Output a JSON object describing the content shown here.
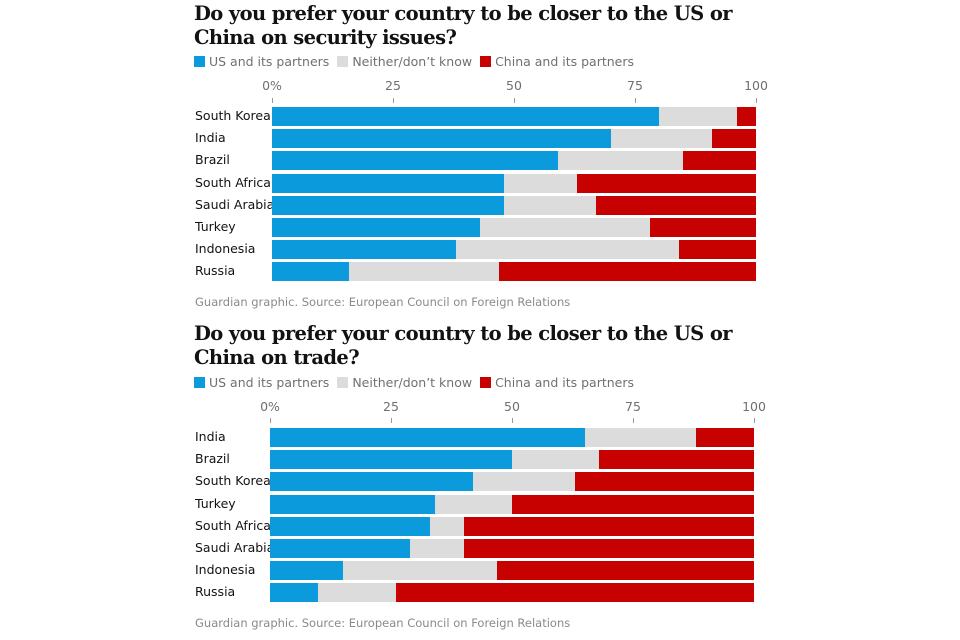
{
  "colors": {
    "us": "#0b9adc",
    "neither": "#dcdcdc",
    "china": "#c70000"
  },
  "chart_data": [
    {
      "type": "bar",
      "orientation": "horizontal",
      "stacked": true,
      "title": "Do you prefer your country to be closer to the US or China on security issues?",
      "xlabel": "",
      "ylabel": "",
      "xlim": [
        0,
        100
      ],
      "x_ticks": [
        "0%",
        "25",
        "50",
        "75",
        "100"
      ],
      "x_tick_values": [
        0,
        25,
        50,
        75,
        100
      ],
      "legend": [
        "US and its partners",
        "Neither/don’t know",
        "China and its partners"
      ],
      "legend_position": "top-left",
      "grid": false,
      "categories": [
        "South Korea",
        "India",
        "Brazil",
        "South Africa",
        "Saudi Arabia",
        "Turkey",
        "Indonesia",
        "Russia"
      ],
      "series": [
        {
          "name": "US and its partners",
          "key": "us",
          "values": [
            80,
            70,
            59,
            48,
            48,
            43,
            38,
            16
          ]
        },
        {
          "name": "Neither/don’t know",
          "key": "neither",
          "values": [
            16,
            21,
            26,
            15,
            19,
            35,
            46,
            31
          ]
        },
        {
          "name": "China and its partners",
          "key": "china",
          "values": [
            4,
            9,
            15,
            37,
            33,
            22,
            16,
            53
          ]
        }
      ],
      "source": "Guardian graphic. Source: European Council on Foreign Relations"
    },
    {
      "type": "bar",
      "orientation": "horizontal",
      "stacked": true,
      "title": "Do you prefer your country to be closer to the US or China on trade?",
      "xlabel": "",
      "ylabel": "",
      "xlim": [
        0,
        100
      ],
      "x_ticks": [
        "0%",
        "25",
        "50",
        "75",
        "100"
      ],
      "x_tick_values": [
        0,
        25,
        50,
        75,
        100
      ],
      "legend": [
        "US and its partners",
        "Neither/don’t know",
        "China and its partners"
      ],
      "legend_position": "top-left",
      "grid": false,
      "categories": [
        "India",
        "Brazil",
        "South Korea",
        "Turkey",
        "South Africa",
        "Saudi Arabia",
        "Indonesia",
        "Russia"
      ],
      "series": [
        {
          "name": "US and its partners",
          "key": "us",
          "values": [
            65,
            50,
            42,
            34,
            33,
            29,
            15,
            10
          ]
        },
        {
          "name": "Neither/don’t know",
          "key": "neither",
          "values": [
            23,
            18,
            21,
            16,
            7,
            11,
            32,
            16
          ]
        },
        {
          "name": "China and its partners",
          "key": "china",
          "values": [
            12,
            32,
            37,
            50,
            60,
            60,
            53,
            74
          ]
        }
      ],
      "source": "Guardian graphic. Source: European Council on Foreign Relations"
    }
  ]
}
